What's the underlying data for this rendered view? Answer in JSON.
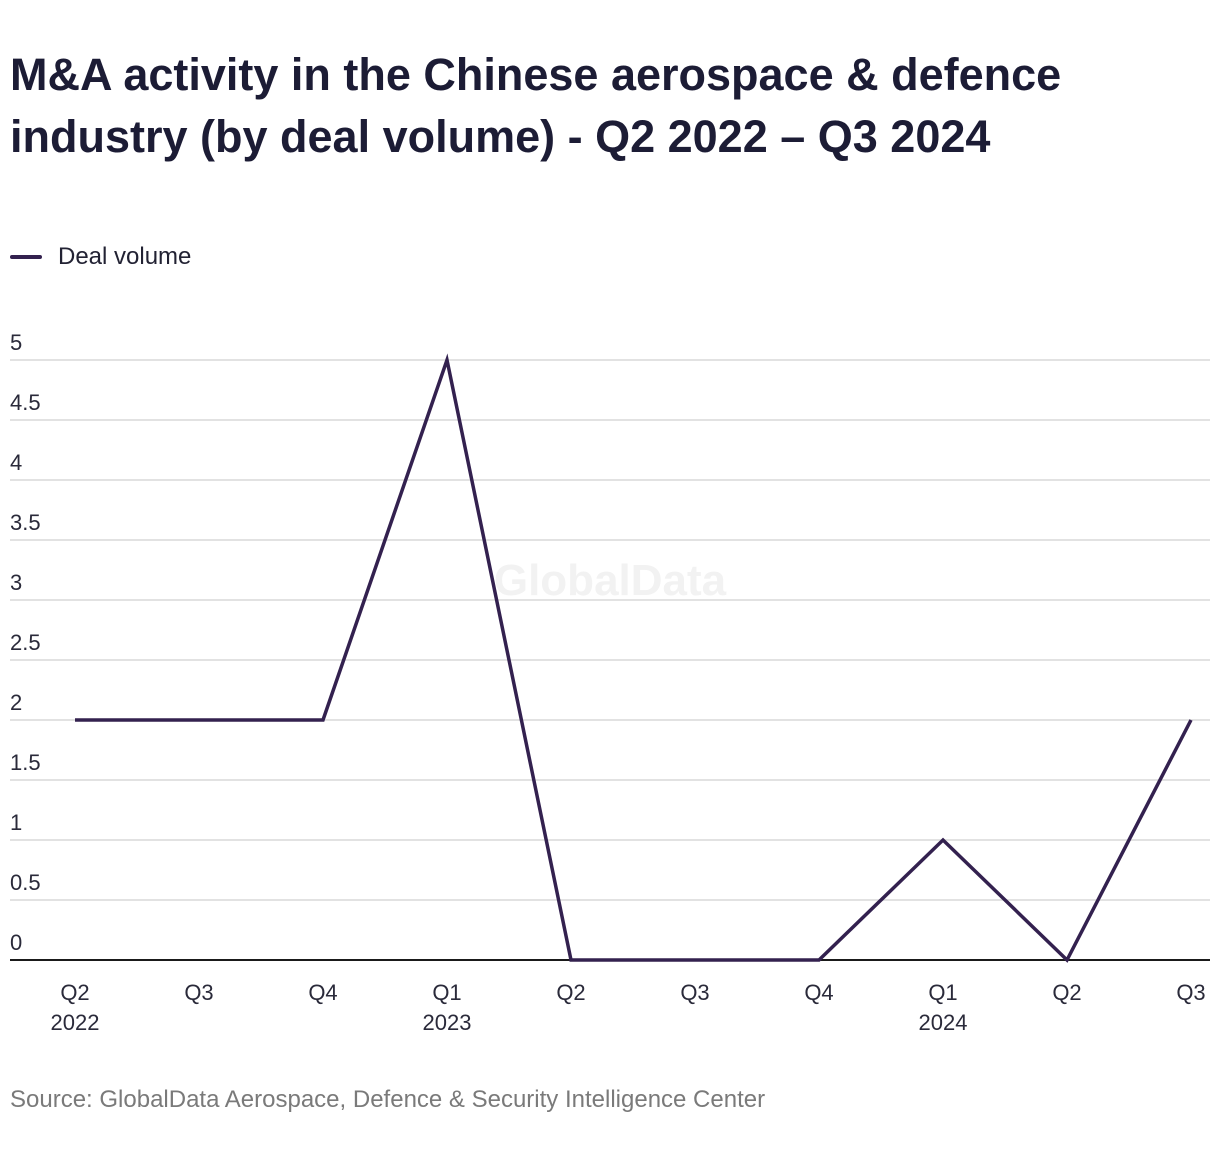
{
  "title": "M&A activity in the Chinese aerospace & defence industry (by deal volume) - Q2 2022 – Q3 2024",
  "legend": {
    "label": "Deal volume"
  },
  "watermark": "GlobalData",
  "source": "Source: GlobalData Aerospace, Defence & Security Intelligence Center",
  "colors": {
    "line": "#33214f",
    "grid": "#d9d9d9",
    "axis": "#1a1a1a"
  },
  "chart_data": {
    "type": "line",
    "title": "M&A activity in the Chinese aerospace & defence industry (by deal volume) - Q2 2022 – Q3 2024",
    "categories": [
      {
        "quarter": "Q2",
        "year": "2022"
      },
      {
        "quarter": "Q3",
        "year": ""
      },
      {
        "quarter": "Q4",
        "year": ""
      },
      {
        "quarter": "Q1",
        "year": "2023"
      },
      {
        "quarter": "Q2",
        "year": ""
      },
      {
        "quarter": "Q3",
        "year": ""
      },
      {
        "quarter": "Q4",
        "year": ""
      },
      {
        "quarter": "Q1",
        "year": "2024"
      },
      {
        "quarter": "Q2",
        "year": ""
      },
      {
        "quarter": "Q3",
        "year": ""
      }
    ],
    "series": [
      {
        "name": "Deal volume",
        "values": [
          2,
          2,
          2,
          5,
          0,
          0,
          0,
          1,
          0,
          2
        ]
      }
    ],
    "yticks": [
      "0",
      "0.5",
      "1",
      "1.5",
      "2",
      "2.5",
      "3",
      "3.5",
      "4",
      "4.5",
      "5"
    ],
    "ylim": [
      0,
      5
    ],
    "grid": true,
    "legend_position": "top-left"
  }
}
